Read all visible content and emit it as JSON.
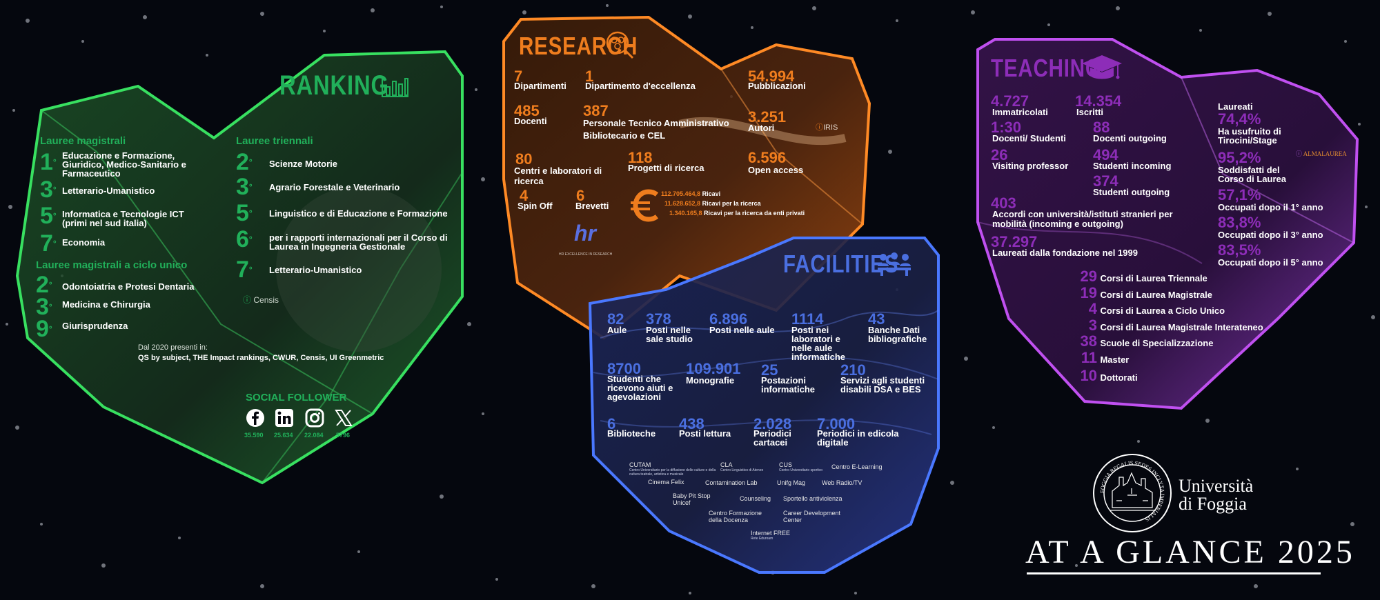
{
  "colors": {
    "ranking": "#21b05a",
    "research": "#ef7d1e",
    "facilities": "#4a6fe0",
    "teaching": "#8d2db8",
    "background": "#05070e"
  },
  "ranking": {
    "title": "RANKING",
    "icon": "bar-chart-icon",
    "magistrali": {
      "heading": "Lauree magistrali",
      "items": [
        {
          "rank": "1",
          "text": "Educazione e Formazione, Giuridico, Medico-Sanitario e Farmaceutico"
        },
        {
          "rank": "3",
          "text": "Letterario-Umanistico"
        },
        {
          "rank": "5",
          "text": "Informatica e Tecnologie ICT (primi nel sud italia)"
        },
        {
          "rank": "7",
          "text": "Economia"
        }
      ]
    },
    "ciclo_unico": {
      "heading": "Lauree magistrali a ciclo unico",
      "items": [
        {
          "rank": "2",
          "text": "Odontoiatria e Protesi Dentaria"
        },
        {
          "rank": "3",
          "text": "Medicina e Chirurgia"
        },
        {
          "rank": "9",
          "text": "Giurisprudenza"
        }
      ]
    },
    "triennali": {
      "heading": "Lauree triennali",
      "items": [
        {
          "rank": "2",
          "text": "Scienze Motorie"
        },
        {
          "rank": "3",
          "text": "Agrario Forestale e Veterinario"
        },
        {
          "rank": "5",
          "text": "Linguistico e di Educazione e Formazione"
        },
        {
          "rank": "6",
          "text": "per i rapporti internazionali per il Corso di Laurea in Ingegneria Gestionale"
        },
        {
          "rank": "7",
          "text": "Letterario-Umanistico"
        }
      ]
    },
    "ordinal": "°",
    "source": "Censis",
    "since": "Dal 2020 presenti in:",
    "rankings": "QS by subject, THE Impact rankings, CWUR, Censis, UI Greenmetric",
    "social": {
      "heading": "SOCIAL FOLLOWER",
      "items": [
        {
          "icon": "facebook-icon",
          "count": "35.590"
        },
        {
          "icon": "linkedin-icon",
          "count": "25.634"
        },
        {
          "icon": "instagram-icon",
          "count": "22.084"
        },
        {
          "icon": "x-icon",
          "count": "5796"
        }
      ]
    }
  },
  "research": {
    "title": "RESEARCH",
    "icon": "research-icon",
    "stats": [
      {
        "value": "7",
        "label": "Dipartimenti"
      },
      {
        "value": "1",
        "label": "Dipartimento d'eccellenza"
      },
      {
        "value": "54.994",
        "label": "Pubblicazioni"
      },
      {
        "value": "485",
        "label": "Docenti"
      },
      {
        "value": "387",
        "label": "Personale Tecnico Amministrativo Bibliotecario e CEL"
      },
      {
        "value": "3.251",
        "label": "Autori"
      },
      {
        "value": "80",
        "label": "Centri e laboratori di ricerca"
      },
      {
        "value": "118",
        "label": "Progetti di ricerca"
      },
      {
        "value": "6.596",
        "label": "Open access"
      },
      {
        "value": "4",
        "label": "Spin Off"
      },
      {
        "value": "6",
        "label": "Brevetti"
      }
    ],
    "iris": "IRIS",
    "revenue": [
      {
        "value": "112.705.464,8",
        "label": "Ricavi"
      },
      {
        "value": "11.628.652,8",
        "label": "Ricavi per la ricerca"
      },
      {
        "value": "1.340.165,8",
        "label": "Ricavi per la ricerca da enti privati"
      }
    ],
    "hr_logo": "hr",
    "hr_caption": "HR EXCELLENCE IN RESEARCH"
  },
  "facilities": {
    "title": "FACILITIES",
    "icon": "meeting-icon",
    "stats": [
      {
        "value": "82",
        "label": "Aule"
      },
      {
        "value": "378",
        "label": "Posti nelle sale studio"
      },
      {
        "value": "6.896",
        "label": "Posti nelle aule"
      },
      {
        "value": "1114",
        "label": "Posti nei laboratori e nelle aule informatiche"
      },
      {
        "value": "43",
        "label": "Banche Dati bibliografiche"
      },
      {
        "value": "8700",
        "label": "Studenti che ricevono aiuti e agevolazioni"
      },
      {
        "value": "109.901",
        "label": "Monografie"
      },
      {
        "value": "25",
        "label": "Postazioni informatiche"
      },
      {
        "value": "210",
        "label": "Servizi agli studenti disabili DSA e BES"
      },
      {
        "value": "6",
        "label": "Biblioteche"
      },
      {
        "value": "438",
        "label": "Posti lettura"
      },
      {
        "value": "2.028",
        "label": "Periodici cartacei"
      },
      {
        "value": "7.000",
        "label": "Periodici in edicola digitale"
      }
    ],
    "services": [
      {
        "name": "CUTAM",
        "sub": "Centro Universitario per la diffusione delle culture e della cultura teatrale, artistica e musicale"
      },
      {
        "name": "CLA",
        "sub": "Centro Linguistico di Ateneo"
      },
      {
        "name": "CUS",
        "sub": "Centro Universitario sportivo"
      },
      {
        "name": "Centro E-Learning",
        "sub": ""
      },
      {
        "name": "Cinema Felix",
        "sub": ""
      },
      {
        "name": "Contamination Lab",
        "sub": ""
      },
      {
        "name": "Unifg Mag",
        "sub": ""
      },
      {
        "name": "Web Radio/TV",
        "sub": ""
      },
      {
        "name": "Baby Pit Stop Unicef",
        "sub": ""
      },
      {
        "name": "Counseling",
        "sub": ""
      },
      {
        "name": "Sportello antiviolenza",
        "sub": ""
      },
      {
        "name": "Centro Formazione della Docenza",
        "sub": ""
      },
      {
        "name": "Career Development Center",
        "sub": ""
      },
      {
        "name": "Internet FREE",
        "sub": "Rete Eduroam"
      }
    ]
  },
  "teaching": {
    "title": "TEACHING",
    "icon": "graduation-cap-icon",
    "stats": [
      {
        "value": "4.727",
        "label": "Immatricolati"
      },
      {
        "value": "14.354",
        "label": "Iscritti"
      },
      {
        "value": "1:30",
        "label": "Docenti/ Studenti"
      },
      {
        "value": "88",
        "label": "Docenti outgoing"
      },
      {
        "value": "26",
        "label": "Visiting professor"
      },
      {
        "value": "494",
        "label": "Studenti incoming"
      },
      {
        "value": "374",
        "label": "Studenti outgoing"
      },
      {
        "value": "403",
        "label": "Accordi con università/istituti stranieri per mobilità (incoming e outgoing)"
      },
      {
        "value": "37.297",
        "label": "Laureati dalla fondazione nel 1999"
      }
    ],
    "laureati": {
      "heading": "Laureati",
      "items": [
        {
          "value": "74,4%",
          "label": "Ha usufruito di Tirocini/Stage"
        },
        {
          "value": "95,2%",
          "label": "Soddisfatti del Corso di Laurea"
        },
        {
          "value": "57,1%",
          "label": "Occupati dopo il 1° anno"
        },
        {
          "value": "83,8%",
          "label": "Occupati dopo il 3° anno"
        },
        {
          "value": "83,5%",
          "label": "Occupati dopo il 5° anno"
        }
      ]
    },
    "almalaurea": "ALMALAUREA",
    "courses": [
      {
        "value": "29",
        "label": "Corsi di Laurea Triennale"
      },
      {
        "value": "19",
        "label": "Corsi di Laurea Magistrale"
      },
      {
        "value": "4",
        "label": "Corsi di Laurea a Ciclo Unico"
      },
      {
        "value": "3",
        "label": "Corsi di Laurea Magistrale Interateneo"
      },
      {
        "value": "38",
        "label": "Scuole di Specializzazione"
      },
      {
        "value": "11",
        "label": "Master"
      },
      {
        "value": "10",
        "label": "Dottorati"
      }
    ]
  },
  "branding": {
    "university_line1": "Università",
    "university_line2": "di Foggia",
    "seal_text": "FOGGIA REGALIS SEDES INCLYTA IMPERIALIS",
    "tagline": "AT A GLANCE 2025"
  }
}
